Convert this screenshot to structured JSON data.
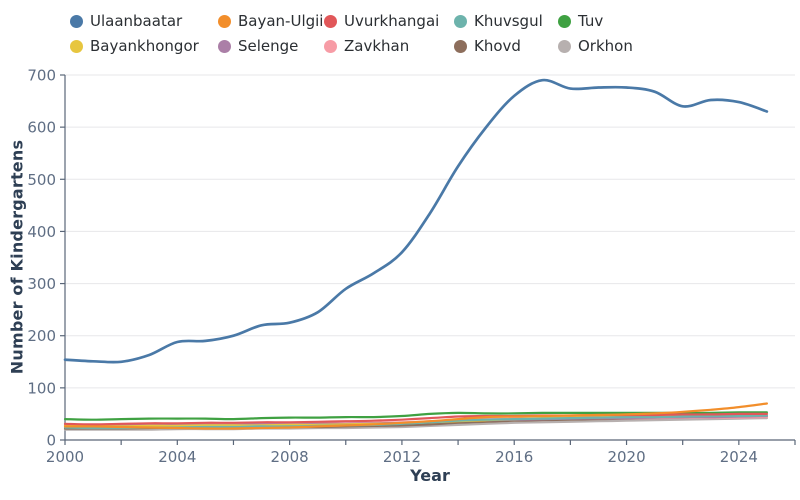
{
  "background": "#ffffff",
  "colors": {
    "axis_title_text": "#2e3f54",
    "tick_text": "#5f6e84",
    "grid_line": "#e7e7ea",
    "axis_line": "#5a6678",
    "legend_text": "#2b2f33"
  },
  "chart_data": {
    "type": "line",
    "title": "",
    "xlabel": "Year",
    "ylabel": "Number of Kindergartens",
    "x": [
      2000,
      2001,
      2002,
      2003,
      2004,
      2005,
      2006,
      2007,
      2008,
      2009,
      2010,
      2011,
      2012,
      2013,
      2014,
      2015,
      2016,
      2017,
      2018,
      2019,
      2020,
      2021,
      2022,
      2023,
      2024,
      2025
    ],
    "xlim": [
      2000,
      2026
    ],
    "ylim": [
      0,
      700
    ],
    "x_tick_labels": [
      "2000",
      "2004",
      "2008",
      "2012",
      "2016",
      "2020",
      "2024"
    ],
    "x_ticks_labeled": [
      2000,
      2004,
      2008,
      2012,
      2016,
      2020,
      2024
    ],
    "x_ticks_minor": [
      2002,
      2006,
      2010,
      2014,
      2018,
      2022,
      2026
    ],
    "y_tick_labels": [
      "0",
      "100",
      "200",
      "300",
      "400",
      "500",
      "600",
      "700"
    ],
    "y_ticks": [
      0,
      100,
      200,
      300,
      400,
      500,
      600,
      700
    ],
    "grid": "horizontal",
    "legend_position": "top-left",
    "legend_rows": 2,
    "series": [
      {
        "name": "Ulaanbaatar",
        "color": "#4a79a7",
        "values": [
          154,
          151,
          150,
          163,
          188,
          190,
          200,
          220,
          225,
          245,
          290,
          320,
          360,
          435,
          525,
          600,
          660,
          690,
          674,
          676,
          676,
          668,
          640,
          652,
          648,
          630
        ]
      },
      {
        "name": "Bayan-Ulgii",
        "color": "#f28e2b",
        "values": [
          26,
          26,
          25,
          24,
          23,
          22,
          22,
          23,
          24,
          26,
          28,
          30,
          33,
          36,
          40,
          44,
          45,
          46,
          47,
          48,
          49,
          51,
          54,
          58,
          63,
          70
        ]
      },
      {
        "name": "Uvurkhangai",
        "color": "#e15759",
        "values": [
          31,
          30,
          31,
          32,
          32,
          33,
          33,
          34,
          34,
          35,
          36,
          37,
          39,
          42,
          45,
          46,
          46,
          47,
          47,
          48,
          48,
          48,
          49,
          49,
          50,
          50
        ]
      },
      {
        "name": "Khuvsgul",
        "color": "#6db3ac",
        "values": [
          24,
          23,
          23,
          24,
          24,
          25,
          25,
          26,
          26,
          27,
          28,
          29,
          31,
          34,
          37,
          39,
          40,
          41,
          42,
          43,
          44,
          44,
          45,
          46,
          46,
          47
        ]
      },
      {
        "name": "Tuv",
        "color": "#3fa142",
        "values": [
          40,
          39,
          40,
          41,
          41,
          41,
          40,
          42,
          43,
          43,
          44,
          44,
          46,
          50,
          52,
          51,
          51,
          52,
          52,
          52,
          52,
          52,
          52,
          52,
          53,
          53
        ]
      },
      {
        "name": "Bayankhongor",
        "color": "#e7c63f",
        "values": [
          27,
          27,
          26,
          27,
          27,
          28,
          28,
          28,
          29,
          29,
          30,
          31,
          32,
          34,
          36,
          38,
          40,
          42,
          43,
          44,
          45,
          46,
          47,
          48,
          49,
          50
        ]
      },
      {
        "name": "Selenge",
        "color": "#ab7fa7",
        "values": [
          28,
          28,
          28,
          28,
          29,
          29,
          29,
          30,
          30,
          31,
          31,
          32,
          33,
          35,
          37,
          38,
          39,
          40,
          41,
          42,
          42,
          43,
          44,
          44,
          45,
          46
        ]
      },
      {
        "name": "Zavkhan",
        "color": "#f79ca6",
        "values": [
          30,
          29,
          29,
          30,
          30,
          30,
          31,
          31,
          31,
          32,
          32,
          33,
          34,
          36,
          38,
          40,
          41,
          41,
          42,
          42,
          42,
          42,
          43,
          43,
          43,
          44
        ]
      },
      {
        "name": "Khovd",
        "color": "#8d6e5c",
        "values": [
          22,
          22,
          22,
          23,
          23,
          23,
          24,
          24,
          25,
          25,
          26,
          27,
          28,
          30,
          33,
          35,
          37,
          38,
          39,
          40,
          41,
          42,
          43,
          44,
          44,
          45
        ]
      },
      {
        "name": "Orkhon",
        "color": "#b7b0af",
        "values": [
          20,
          20,
          20,
          20,
          21,
          21,
          21,
          22,
          22,
          23,
          23,
          24,
          25,
          27,
          29,
          31,
          33,
          34,
          35,
          36,
          37,
          38,
          39,
          40,
          41,
          42
        ]
      }
    ]
  }
}
